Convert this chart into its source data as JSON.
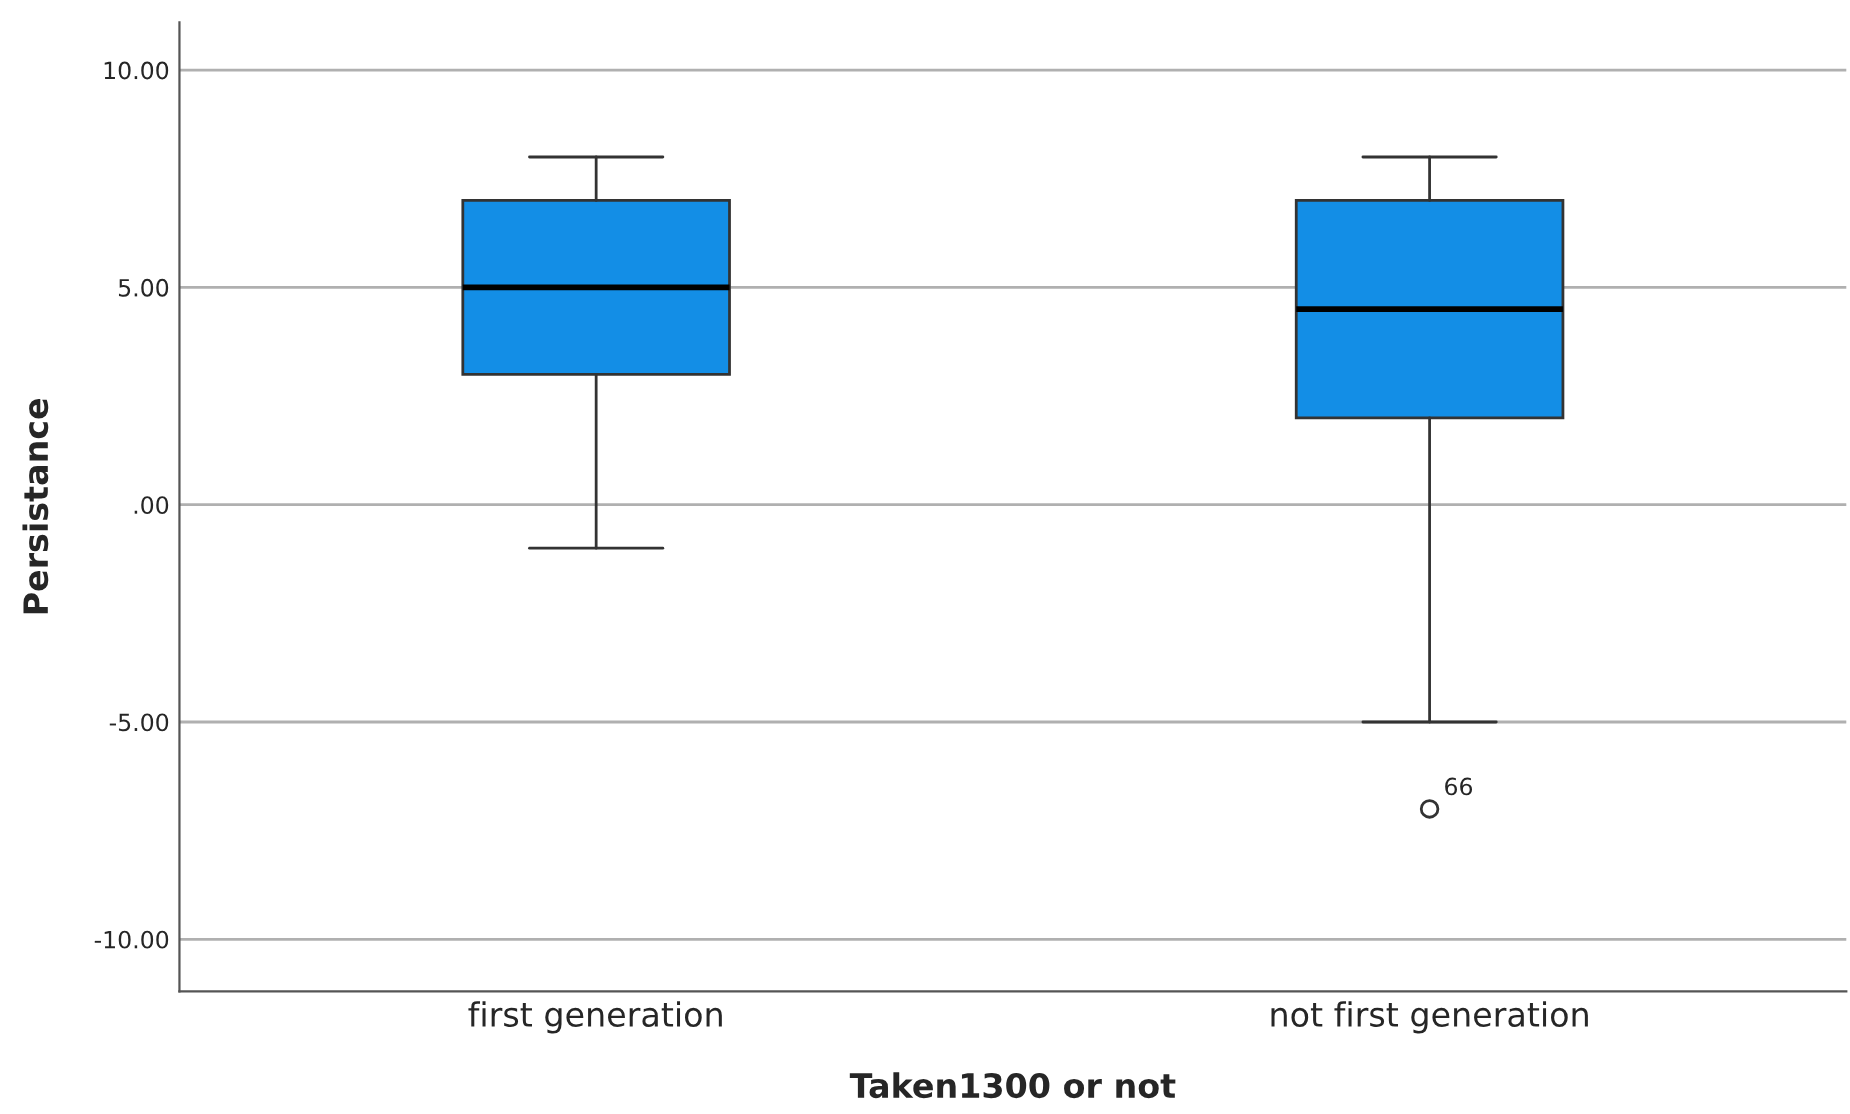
{
  "chart_data": {
    "type": "box",
    "xlabel": "Taken1300 or not",
    "ylabel": "Persistance",
    "categories": [
      "first generation",
      "not first generation"
    ],
    "series": [
      {
        "color": "#138ee6",
        "boxes": [
          {
            "low": -1,
            "q1": 3,
            "median": 5,
            "q3": 7,
            "high": 8
          },
          {
            "low": -5,
            "q1": 2,
            "median": 4.5,
            "q3": 7,
            "high": 8,
            "outliers": [
              -7
            ]
          }
        ]
      }
    ],
    "annotations": [
      "66"
    ],
    "ylim": [
      -11.2,
      11.1
    ],
    "yticks": [
      {
        "value": -10,
        "label": "-10.00"
      },
      {
        "value": -5,
        "label": "-5.00"
      },
      {
        "value": 0,
        "label": ".00"
      },
      {
        "value": 5,
        "label": "5.00"
      },
      {
        "value": 10,
        "label": "10.00"
      }
    ],
    "grid": "y",
    "legend": false
  }
}
